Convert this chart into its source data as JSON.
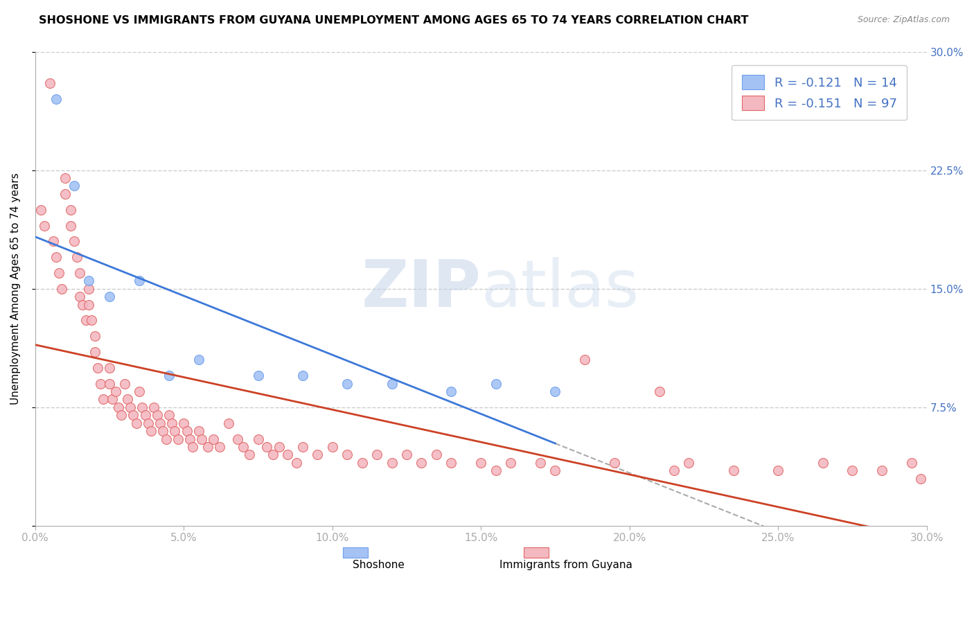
{
  "title": "SHOSHONE VS IMMIGRANTS FROM GUYANA UNEMPLOYMENT AMONG AGES 65 TO 74 YEARS CORRELATION CHART",
  "source_text": "Source: ZipAtlas.com",
  "ylabel": "Unemployment Among Ages 65 to 74 years",
  "xlim": [
    0.0,
    0.3
  ],
  "ylim": [
    0.0,
    0.3
  ],
  "legend1_label": "R = -0.121   N = 14",
  "legend2_label": "R = -0.151   N = 97",
  "shoshone_color": "#a4c2f4",
  "guyana_color": "#f4b8c1",
  "shoshone_edge": "#6d9eeb",
  "guyana_edge": "#e06666",
  "trend_shoshone_color": "#3c78d8",
  "trend_guyana_color": "#cc4125",
  "dash_color": "#aaaaaa",
  "watermark_color": "#d0d8e8",
  "tick_label_color": "#4472c4",
  "shoshone_x": [
    0.007,
    0.013,
    0.018,
    0.025,
    0.035,
    0.045,
    0.055,
    0.075,
    0.09,
    0.105,
    0.12,
    0.14,
    0.155,
    0.175
  ],
  "shoshone_y": [
    0.27,
    0.215,
    0.155,
    0.145,
    0.155,
    0.095,
    0.105,
    0.095,
    0.095,
    0.09,
    0.09,
    0.085,
    0.09,
    0.085
  ],
  "guyana_x": [
    0.002,
    0.003,
    0.005,
    0.006,
    0.007,
    0.008,
    0.009,
    0.01,
    0.01,
    0.012,
    0.012,
    0.013,
    0.014,
    0.015,
    0.015,
    0.016,
    0.017,
    0.018,
    0.018,
    0.019,
    0.02,
    0.02,
    0.021,
    0.022,
    0.023,
    0.025,
    0.025,
    0.026,
    0.027,
    0.028,
    0.029,
    0.03,
    0.031,
    0.032,
    0.033,
    0.034,
    0.035,
    0.036,
    0.037,
    0.038,
    0.039,
    0.04,
    0.041,
    0.042,
    0.043,
    0.044,
    0.045,
    0.046,
    0.047,
    0.048,
    0.05,
    0.051,
    0.052,
    0.053,
    0.055,
    0.056,
    0.058,
    0.06,
    0.062,
    0.065,
    0.068,
    0.07,
    0.072,
    0.075,
    0.078,
    0.08,
    0.082,
    0.085,
    0.088,
    0.09,
    0.095,
    0.1,
    0.105,
    0.11,
    0.115,
    0.12,
    0.125,
    0.13,
    0.135,
    0.14,
    0.15,
    0.155,
    0.16,
    0.17,
    0.175,
    0.185,
    0.195,
    0.21,
    0.215,
    0.22,
    0.235,
    0.25,
    0.265,
    0.275,
    0.285,
    0.295,
    0.298
  ],
  "guyana_y": [
    0.2,
    0.19,
    0.28,
    0.18,
    0.17,
    0.16,
    0.15,
    0.22,
    0.21,
    0.2,
    0.19,
    0.18,
    0.17,
    0.16,
    0.145,
    0.14,
    0.13,
    0.15,
    0.14,
    0.13,
    0.12,
    0.11,
    0.1,
    0.09,
    0.08,
    0.1,
    0.09,
    0.08,
    0.085,
    0.075,
    0.07,
    0.09,
    0.08,
    0.075,
    0.07,
    0.065,
    0.085,
    0.075,
    0.07,
    0.065,
    0.06,
    0.075,
    0.07,
    0.065,
    0.06,
    0.055,
    0.07,
    0.065,
    0.06,
    0.055,
    0.065,
    0.06,
    0.055,
    0.05,
    0.06,
    0.055,
    0.05,
    0.055,
    0.05,
    0.065,
    0.055,
    0.05,
    0.045,
    0.055,
    0.05,
    0.045,
    0.05,
    0.045,
    0.04,
    0.05,
    0.045,
    0.05,
    0.045,
    0.04,
    0.045,
    0.04,
    0.045,
    0.04,
    0.045,
    0.04,
    0.04,
    0.035,
    0.04,
    0.04,
    0.035,
    0.105,
    0.04,
    0.085,
    0.035,
    0.04,
    0.035,
    0.035,
    0.04,
    0.035,
    0.035,
    0.04,
    0.03
  ]
}
